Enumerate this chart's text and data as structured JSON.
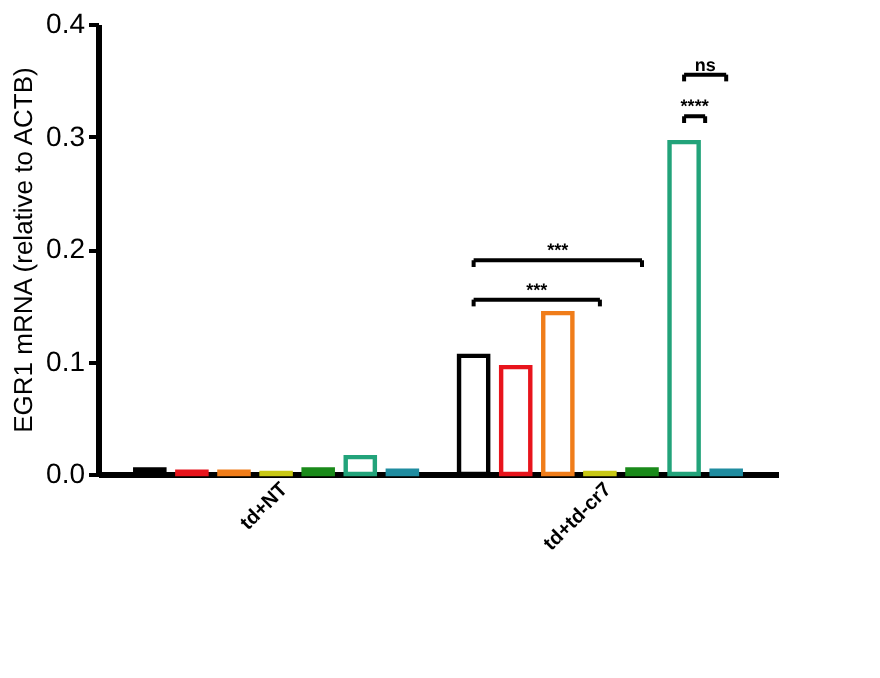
{
  "chart_data": {
    "type": "bar",
    "ylabel": "EGR1 mRNA (relative to ACTB)",
    "categories": [
      "td+NT",
      "td+td-cr7"
    ],
    "series": [
      {
        "color": "#000000",
        "values": [
          0.004,
          0.105
        ]
      },
      {
        "color": "#e8141c",
        "values": [
          0.002,
          0.095
        ]
      },
      {
        "color": "#f07d1a",
        "values": [
          0.002,
          0.143
        ]
      },
      {
        "color": "#c8c814",
        "values": [
          0.001,
          0.001
        ]
      },
      {
        "color": "#1a8a1a",
        "values": [
          0.004,
          0.004
        ]
      },
      {
        "color": "#22a37a",
        "values": [
          0.015,
          0.295
        ]
      },
      {
        "color": "#1f8ca0",
        "values": [
          0.003,
          0.003
        ]
      }
    ],
    "ylim": [
      0,
      0.4
    ],
    "yticks": [
      {
        "value": 0,
        "label": "0.0"
      },
      0.1,
      0.2,
      0.3,
      0.4
    ],
    "grid": false,
    "legend": false,
    "annotations": [
      "***",
      "***",
      "****",
      "ns"
    ]
  }
}
